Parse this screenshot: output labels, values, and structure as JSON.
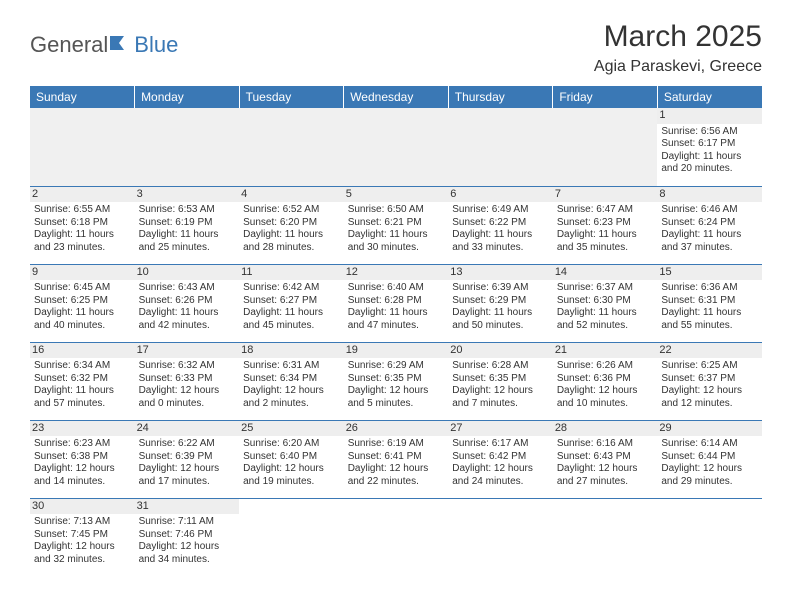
{
  "logo": {
    "general": "General",
    "blue": "Blue"
  },
  "title": "March 2025",
  "location": "Agia Paraskevi, Greece",
  "colors": {
    "header_bg": "#3a78b5",
    "header_text": "#ffffff",
    "border": "#3a78b5",
    "daynum_bg": "#eeeeee",
    "blank_bg": "#f0f0f0",
    "text": "#333333"
  },
  "weekdays": [
    "Sunday",
    "Monday",
    "Tuesday",
    "Wednesday",
    "Thursday",
    "Friday",
    "Saturday"
  ],
  "weeks": [
    [
      null,
      null,
      null,
      null,
      null,
      null,
      {
        "n": "1",
        "sr": "Sunrise: 6:56 AM",
        "ss": "Sunset: 6:17 PM",
        "dl": "Daylight: 11 hours and 20 minutes."
      }
    ],
    [
      {
        "n": "2",
        "sr": "Sunrise: 6:55 AM",
        "ss": "Sunset: 6:18 PM",
        "dl": "Daylight: 11 hours and 23 minutes."
      },
      {
        "n": "3",
        "sr": "Sunrise: 6:53 AM",
        "ss": "Sunset: 6:19 PM",
        "dl": "Daylight: 11 hours and 25 minutes."
      },
      {
        "n": "4",
        "sr": "Sunrise: 6:52 AM",
        "ss": "Sunset: 6:20 PM",
        "dl": "Daylight: 11 hours and 28 minutes."
      },
      {
        "n": "5",
        "sr": "Sunrise: 6:50 AM",
        "ss": "Sunset: 6:21 PM",
        "dl": "Daylight: 11 hours and 30 minutes."
      },
      {
        "n": "6",
        "sr": "Sunrise: 6:49 AM",
        "ss": "Sunset: 6:22 PM",
        "dl": "Daylight: 11 hours and 33 minutes."
      },
      {
        "n": "7",
        "sr": "Sunrise: 6:47 AM",
        "ss": "Sunset: 6:23 PM",
        "dl": "Daylight: 11 hours and 35 minutes."
      },
      {
        "n": "8",
        "sr": "Sunrise: 6:46 AM",
        "ss": "Sunset: 6:24 PM",
        "dl": "Daylight: 11 hours and 37 minutes."
      }
    ],
    [
      {
        "n": "9",
        "sr": "Sunrise: 6:45 AM",
        "ss": "Sunset: 6:25 PM",
        "dl": "Daylight: 11 hours and 40 minutes."
      },
      {
        "n": "10",
        "sr": "Sunrise: 6:43 AM",
        "ss": "Sunset: 6:26 PM",
        "dl": "Daylight: 11 hours and 42 minutes."
      },
      {
        "n": "11",
        "sr": "Sunrise: 6:42 AM",
        "ss": "Sunset: 6:27 PM",
        "dl": "Daylight: 11 hours and 45 minutes."
      },
      {
        "n": "12",
        "sr": "Sunrise: 6:40 AM",
        "ss": "Sunset: 6:28 PM",
        "dl": "Daylight: 11 hours and 47 minutes."
      },
      {
        "n": "13",
        "sr": "Sunrise: 6:39 AM",
        "ss": "Sunset: 6:29 PM",
        "dl": "Daylight: 11 hours and 50 minutes."
      },
      {
        "n": "14",
        "sr": "Sunrise: 6:37 AM",
        "ss": "Sunset: 6:30 PM",
        "dl": "Daylight: 11 hours and 52 minutes."
      },
      {
        "n": "15",
        "sr": "Sunrise: 6:36 AM",
        "ss": "Sunset: 6:31 PM",
        "dl": "Daylight: 11 hours and 55 minutes."
      }
    ],
    [
      {
        "n": "16",
        "sr": "Sunrise: 6:34 AM",
        "ss": "Sunset: 6:32 PM",
        "dl": "Daylight: 11 hours and 57 minutes."
      },
      {
        "n": "17",
        "sr": "Sunrise: 6:32 AM",
        "ss": "Sunset: 6:33 PM",
        "dl": "Daylight: 12 hours and 0 minutes."
      },
      {
        "n": "18",
        "sr": "Sunrise: 6:31 AM",
        "ss": "Sunset: 6:34 PM",
        "dl": "Daylight: 12 hours and 2 minutes."
      },
      {
        "n": "19",
        "sr": "Sunrise: 6:29 AM",
        "ss": "Sunset: 6:35 PM",
        "dl": "Daylight: 12 hours and 5 minutes."
      },
      {
        "n": "20",
        "sr": "Sunrise: 6:28 AM",
        "ss": "Sunset: 6:35 PM",
        "dl": "Daylight: 12 hours and 7 minutes."
      },
      {
        "n": "21",
        "sr": "Sunrise: 6:26 AM",
        "ss": "Sunset: 6:36 PM",
        "dl": "Daylight: 12 hours and 10 minutes."
      },
      {
        "n": "22",
        "sr": "Sunrise: 6:25 AM",
        "ss": "Sunset: 6:37 PM",
        "dl": "Daylight: 12 hours and 12 minutes."
      }
    ],
    [
      {
        "n": "23",
        "sr": "Sunrise: 6:23 AM",
        "ss": "Sunset: 6:38 PM",
        "dl": "Daylight: 12 hours and 14 minutes."
      },
      {
        "n": "24",
        "sr": "Sunrise: 6:22 AM",
        "ss": "Sunset: 6:39 PM",
        "dl": "Daylight: 12 hours and 17 minutes."
      },
      {
        "n": "25",
        "sr": "Sunrise: 6:20 AM",
        "ss": "Sunset: 6:40 PM",
        "dl": "Daylight: 12 hours and 19 minutes."
      },
      {
        "n": "26",
        "sr": "Sunrise: 6:19 AM",
        "ss": "Sunset: 6:41 PM",
        "dl": "Daylight: 12 hours and 22 minutes."
      },
      {
        "n": "27",
        "sr": "Sunrise: 6:17 AM",
        "ss": "Sunset: 6:42 PM",
        "dl": "Daylight: 12 hours and 24 minutes."
      },
      {
        "n": "28",
        "sr": "Sunrise: 6:16 AM",
        "ss": "Sunset: 6:43 PM",
        "dl": "Daylight: 12 hours and 27 minutes."
      },
      {
        "n": "29",
        "sr": "Sunrise: 6:14 AM",
        "ss": "Sunset: 6:44 PM",
        "dl": "Daylight: 12 hours and 29 minutes."
      }
    ],
    [
      {
        "n": "30",
        "sr": "Sunrise: 7:13 AM",
        "ss": "Sunset: 7:45 PM",
        "dl": "Daylight: 12 hours and 32 minutes."
      },
      {
        "n": "31",
        "sr": "Sunrise: 7:11 AM",
        "ss": "Sunset: 7:46 PM",
        "dl": "Daylight: 12 hours and 34 minutes."
      },
      null,
      null,
      null,
      null,
      null
    ]
  ]
}
